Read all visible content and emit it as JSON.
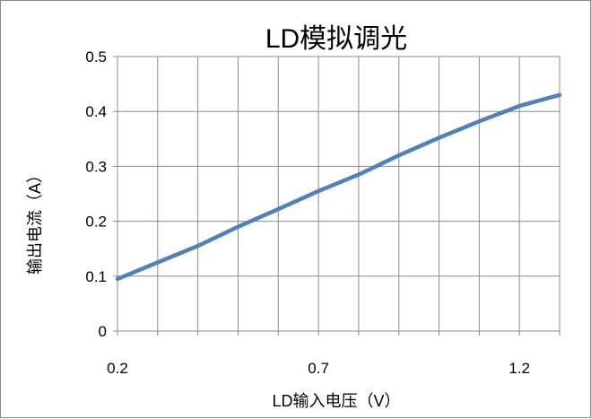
{
  "chart_data": {
    "type": "line",
    "title": "LD模拟调光",
    "xlabel": "LD输入电压（V）",
    "ylabel": "输出电流（A）",
    "xlim": [
      0.2,
      1.3
    ],
    "ylim": [
      0,
      0.5
    ],
    "x_ticks": [
      "0.2",
      "0.7",
      "1.2"
    ],
    "y_ticks": [
      "0",
      "0.1",
      "0.2",
      "0.3",
      "0.4",
      "0.5"
    ],
    "grid": true,
    "legend": "none",
    "series": [
      {
        "color": "#4f81bd",
        "x": [
          0.2,
          0.3,
          0.4,
          0.5,
          0.6,
          0.7,
          0.8,
          0.9,
          1.0,
          1.1,
          1.2,
          1.3
        ],
        "y": [
          0.095,
          0.125,
          0.155,
          0.19,
          0.222,
          0.255,
          0.285,
          0.32,
          0.352,
          0.382,
          0.41,
          0.43
        ]
      }
    ]
  }
}
